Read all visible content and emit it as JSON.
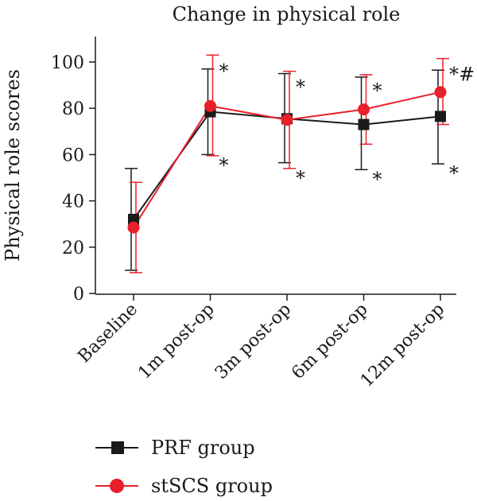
{
  "chart_data": {
    "type": "line",
    "title": "Change in physical role",
    "xlabel": "",
    "ylabel": "Physical role scores",
    "ylim": [
      0,
      110
    ],
    "yticks": [
      0,
      20,
      40,
      60,
      80,
      100
    ],
    "categories": [
      "Baseline",
      "1m post-op",
      "3m post-op",
      "6m post-op",
      "12m post-op"
    ],
    "grid": false,
    "legend_position": "bottom-left",
    "series": [
      {
        "name": "PRF group",
        "color": "#1a1a1a",
        "marker": "square",
        "values": [
          32,
          78.5,
          75.5,
          73,
          76.5
        ],
        "error_upper": [
          54,
          97,
          95,
          93.5,
          96.5
        ],
        "error_lower": [
          10,
          60,
          56.5,
          53.5,
          56
        ]
      },
      {
        "name": "stSCS group",
        "color": "#e8202a",
        "marker": "circle",
        "values": [
          28.5,
          81,
          75,
          79.5,
          87
        ],
        "error_upper": [
          48,
          103,
          96,
          94.5,
          101.5
        ],
        "error_lower": [
          9,
          59.5,
          54,
          64.5,
          73
        ]
      }
    ],
    "annotations": [
      {
        "category_index": 1,
        "upper": "*",
        "lower": "*"
      },
      {
        "category_index": 2,
        "upper": "*",
        "lower": "*"
      },
      {
        "category_index": 3,
        "upper": "*",
        "lower": "*"
      },
      {
        "category_index": 4,
        "upper": "*#",
        "lower": "*"
      }
    ]
  }
}
